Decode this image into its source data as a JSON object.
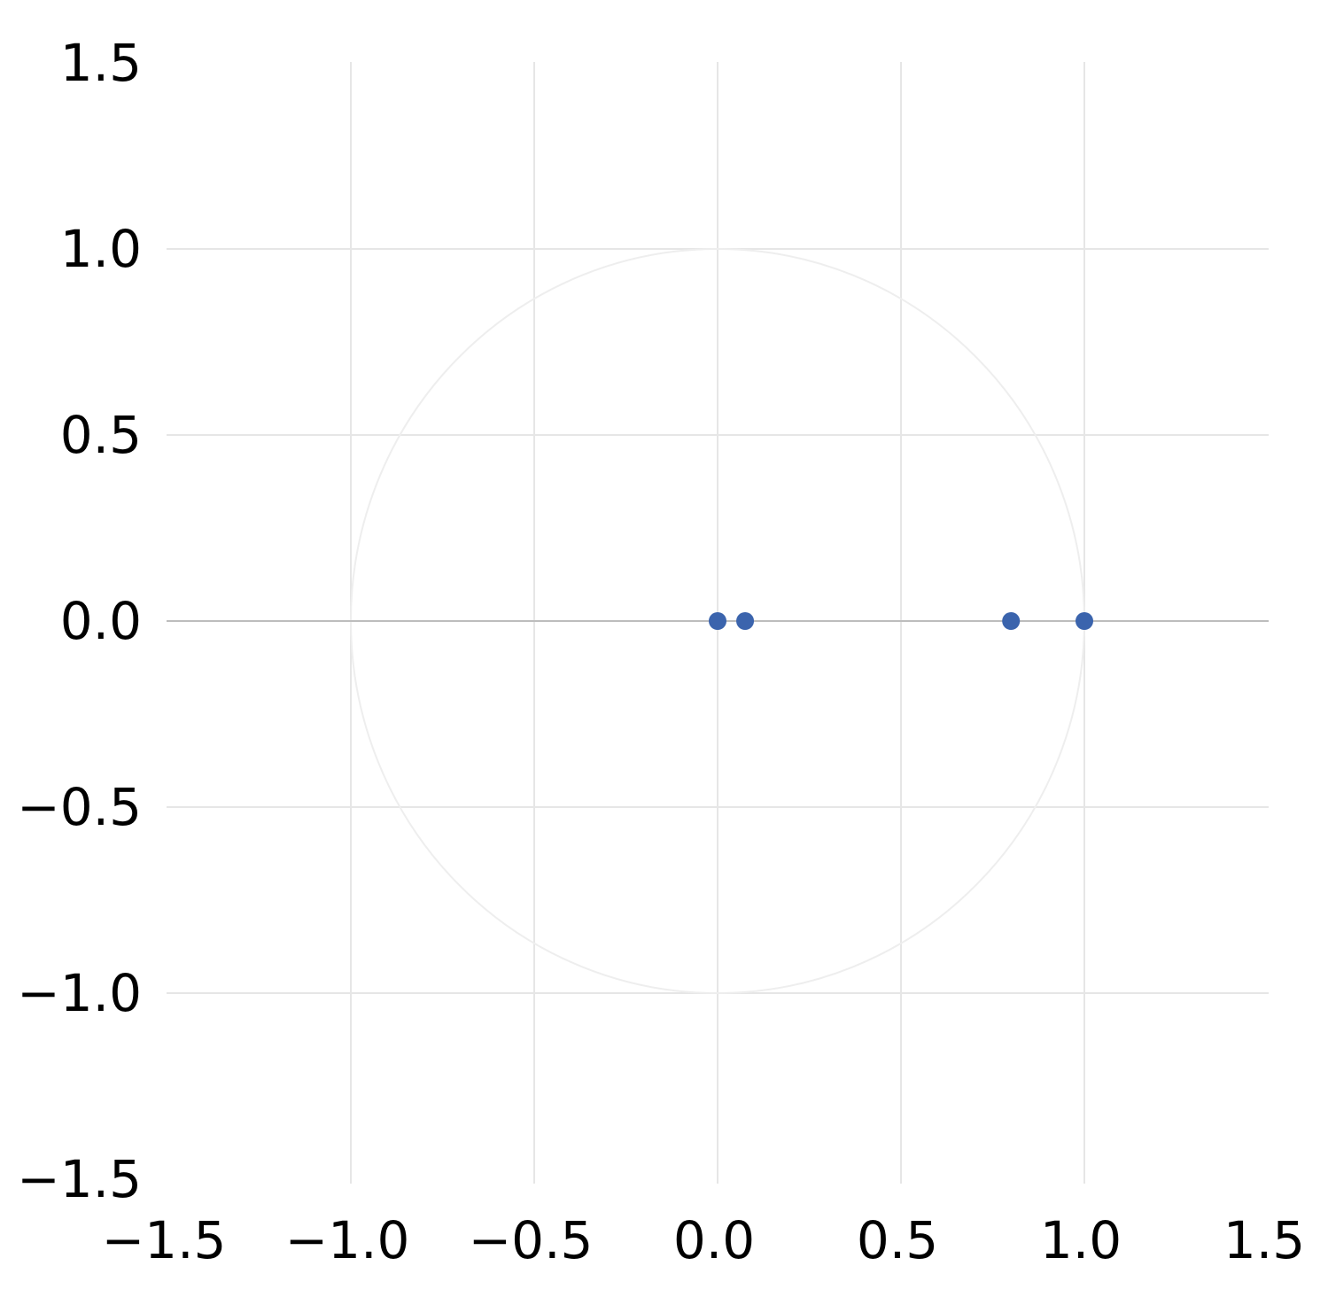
{
  "chart_data": {
    "type": "scatter",
    "title": "",
    "xlabel": "",
    "ylabel": "",
    "xlim": [
      -1.5,
      1.5
    ],
    "ylim": [
      -1.5,
      1.5
    ],
    "x_ticks": [
      -1.5,
      -1.0,
      -0.5,
      0.0,
      0.5,
      1.0,
      1.5
    ],
    "y_ticks": [
      -1.5,
      -1.0,
      -0.5,
      0.0,
      0.5,
      1.0,
      1.5
    ],
    "x_tick_labels": [
      "−1.5",
      "−1.0",
      "−0.5",
      "0.0",
      "0.5",
      "1.0",
      "1.5"
    ],
    "y_tick_labels": [
      "−1.5",
      "−1.0",
      "−0.5",
      "0.0",
      "0.5",
      "1.0",
      "1.5"
    ],
    "grid": true,
    "legend": "none",
    "reference_circle": {
      "center": [
        0,
        0
      ],
      "radius": 1
    },
    "series": [
      {
        "points": [
          {
            "x": 0.0,
            "y": 0.0
          },
          {
            "x": 0.075,
            "y": 0.0
          },
          {
            "x": 0.8,
            "y": 0.0
          },
          {
            "x": 1.0,
            "y": 0.0
          }
        ],
        "color": "#3b64ad"
      }
    ],
    "colors": {
      "grid": "#e6e6e6",
      "zero_line": "#bdbdbd",
      "circle": "#eeeeee",
      "marker": "#3b64ad"
    }
  }
}
